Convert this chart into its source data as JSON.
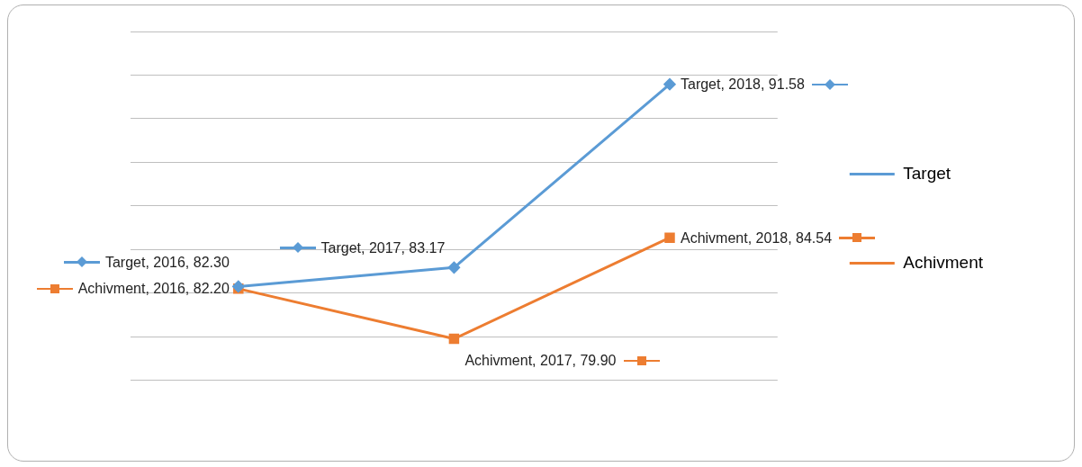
{
  "chart_data": {
    "type": "line",
    "categories": [
      null,
      null,
      null
    ],
    "series": [
      {
        "name": "Target",
        "color": "#5b9bd5",
        "marker": "diamond",
        "values": [
          82.3,
          83.17,
          91.58
        ],
        "value_labels": [
          "Target, 2016, 82.30",
          "Target, 2017, 83.17",
          "Target, 2018, 91.58"
        ]
      },
      {
        "name": "Achivment",
        "color": "#ed7d31",
        "marker": "square",
        "values": [
          82.2,
          79.9,
          84.54
        ],
        "value_labels": [
          "Achivment, 2016, 82.20",
          "Achivment, 2017, 79.90",
          "Achivment, 2018, 84.54"
        ]
      }
    ],
    "grid": "y",
    "legend": "right"
  }
}
